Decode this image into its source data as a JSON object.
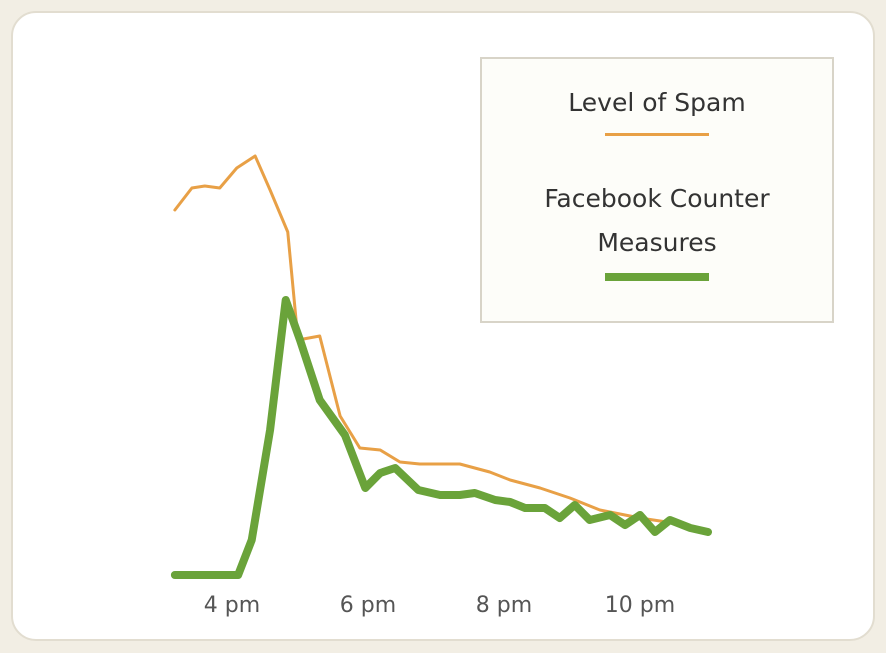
{
  "chart_data": {
    "type": "line",
    "xlim": [
      15,
      23
    ],
    "ylim": [
      0,
      110
    ],
    "xticks": [
      {
        "value": 16,
        "label": "4 pm"
      },
      {
        "value": 18,
        "label": "6 pm"
      },
      {
        "value": 20,
        "label": "8 pm"
      },
      {
        "value": 22,
        "label": "10 pm"
      }
    ],
    "legend": "top-right",
    "series": [
      {
        "name": "Level of Spam",
        "color": "#e8a046",
        "width": 3,
        "x": [
          15.16,
          15.41,
          15.6,
          15.82,
          16.07,
          16.34,
          16.56,
          16.82,
          16.97,
          17.29,
          17.59,
          17.88,
          18.18,
          18.47,
          18.76,
          19.06,
          19.35,
          19.79,
          20.09,
          20.53,
          20.97,
          21.41,
          22.0,
          22.59,
          23.0
        ],
        "values": [
          92.5,
          98,
          98.5,
          98,
          103,
          106,
          97.5,
          87,
          60,
          61,
          41,
          33,
          32.5,
          29.5,
          29,
          29,
          29,
          27,
          25,
          23,
          20.5,
          17.5,
          15.5,
          14,
          12.5
        ]
      },
      {
        "name": "Facebook Counter Measures",
        "color": "#6aa33a",
        "width": 8,
        "x": [
          15.16,
          16.09,
          16.29,
          16.56,
          16.79,
          17.0,
          17.29,
          17.66,
          17.96,
          18.18,
          18.4,
          18.74,
          19.06,
          19.35,
          19.57,
          19.87,
          20.09,
          20.31,
          20.6,
          20.82,
          21.04,
          21.26,
          21.56,
          21.78,
          22.0,
          22.22,
          22.44,
          22.74,
          23.0
        ],
        "values": [
          1.25,
          1.25,
          10,
          37.5,
          70,
          60,
          45,
          36.25,
          23,
          26.75,
          28,
          22.5,
          21.25,
          21.25,
          21.75,
          20,
          19.5,
          18,
          18,
          15.5,
          18.75,
          15,
          16.25,
          13.75,
          16.25,
          12,
          15,
          13,
          12
        ]
      }
    ]
  }
}
